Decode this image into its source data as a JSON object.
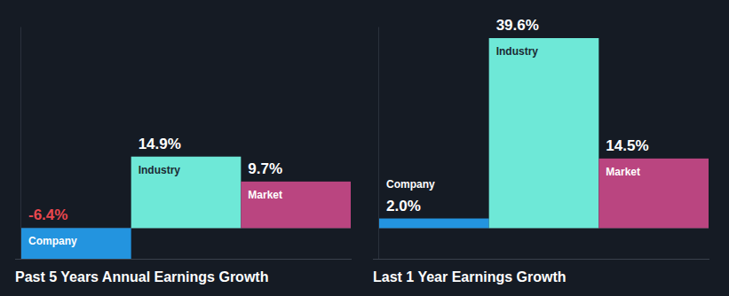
{
  "chart_data": [
    {
      "type": "bar",
      "title": "Past 5 Years Annual Earnings Growth",
      "categories": [
        "Company",
        "Industry",
        "Market"
      ],
      "values": [
        -6.4,
        14.9,
        9.7
      ],
      "value_labels": [
        "-6.4%",
        "14.9%",
        "9.7%"
      ],
      "colors": [
        "#2394df",
        "#6ee8d7",
        "#ba4580"
      ],
      "ylim": [
        -6.4,
        42
      ],
      "yticks": [
        0
      ],
      "grid": true,
      "data_labels": true,
      "tick_labels": false
    },
    {
      "type": "bar",
      "title": "Last 1 Year Earnings Growth",
      "categories": [
        "Company",
        "Industry",
        "Market"
      ],
      "values": [
        2.0,
        39.6,
        14.5
      ],
      "value_labels": [
        "2.0%",
        "39.6%",
        "14.5%"
      ],
      "colors": [
        "#2394df",
        "#6ee8d7",
        "#ba4580"
      ],
      "ylim": [
        -6.4,
        42
      ],
      "yticks": [
        0
      ],
      "grid": true,
      "data_labels": true,
      "tick_labels": false
    }
  ]
}
